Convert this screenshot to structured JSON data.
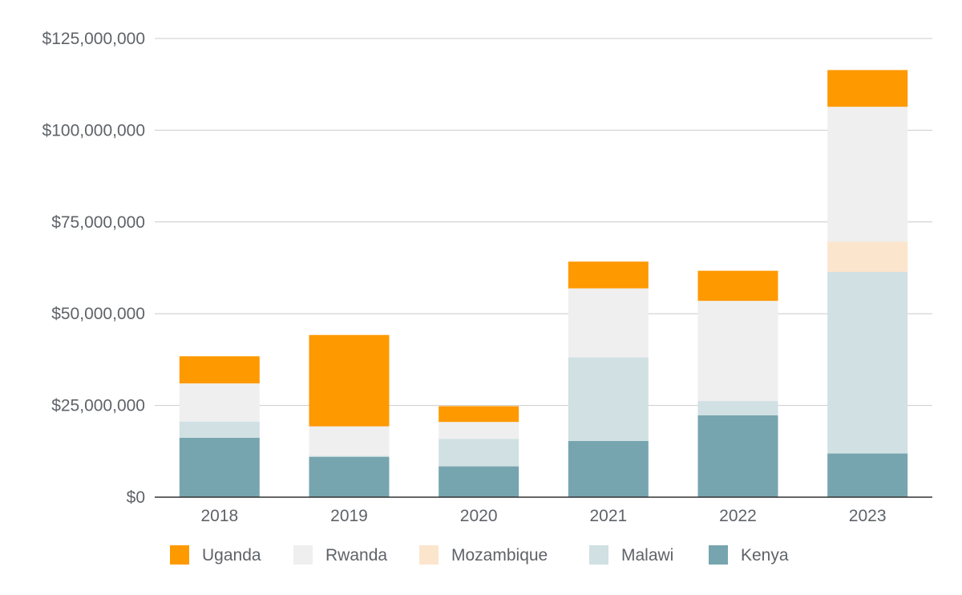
{
  "chart_data": {
    "type": "bar",
    "stacked": true,
    "title": "",
    "xlabel": "",
    "ylabel": "",
    "categories": [
      "2018",
      "2019",
      "2020",
      "2021",
      "2022",
      "2023"
    ],
    "ylim": [
      0,
      125000000
    ],
    "yticks": [
      {
        "value": 0,
        "label": "$0"
      },
      {
        "value": 25000000,
        "label": "$25,000,000"
      },
      {
        "value": 50000000,
        "label": "$50,000,000"
      },
      {
        "value": 75000000,
        "label": "$75,000,000"
      },
      {
        "value": 100000000,
        "label": "$100,000,000"
      },
      {
        "value": 125000000,
        "label": "$125,000,000"
      }
    ],
    "grid": true,
    "legend_position": "bottom",
    "series": [
      {
        "name": "Kenya",
        "color": "#76a5af",
        "values": [
          16200000,
          11000000,
          8400000,
          15300000,
          22300000,
          11900000
        ]
      },
      {
        "name": "Malawi",
        "color": "#d0e0e3",
        "values": [
          4400000,
          300000,
          7500000,
          22800000,
          3900000,
          49500000
        ]
      },
      {
        "name": "Mozambique",
        "color": "#fce5cd",
        "values": [
          0,
          0,
          0,
          0,
          0,
          8200000
        ]
      },
      {
        "name": "Rwanda",
        "color": "#efefef",
        "values": [
          10400000,
          8000000,
          4600000,
          18800000,
          27300000,
          36800000
        ]
      },
      {
        "name": "Uganda",
        "color": "#ff9900",
        "values": [
          7400000,
          24900000,
          4300000,
          7300000,
          8200000,
          10000000
        ]
      }
    ],
    "legend_order": [
      "Uganda",
      "Rwanda",
      "Mozambique",
      "Malawi",
      "Kenya"
    ]
  }
}
